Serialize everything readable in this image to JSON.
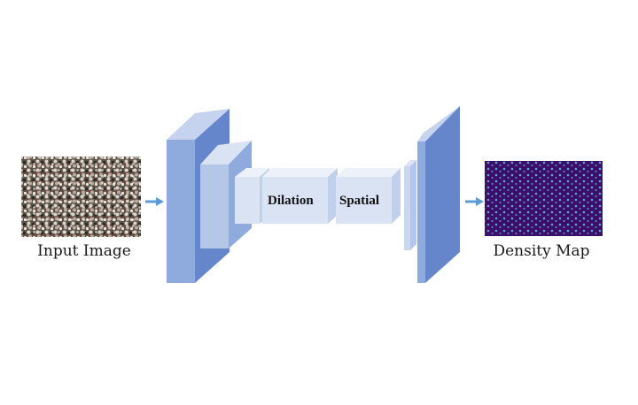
{
  "labels": {
    "input_image": "Input Image",
    "density_map": "Density Map",
    "dilation": "Dilation",
    "spatial": "Spatial"
  },
  "colors": {
    "arrow": "#5b9bd5",
    "dark_block_front": "#8faadc",
    "dark_block_side": "#6686cc",
    "dark_block_top": "#c5d3ef",
    "mid_block_front": "#b4c7e7",
    "mid_block_side": "#8faadc",
    "light_block_front": "#dae3f3",
    "light_block_side": "#c0cfeb",
    "light_block_top": "#edf2fa",
    "density_background": "#3d0d6b",
    "density_points": "#5aa6c8"
  }
}
